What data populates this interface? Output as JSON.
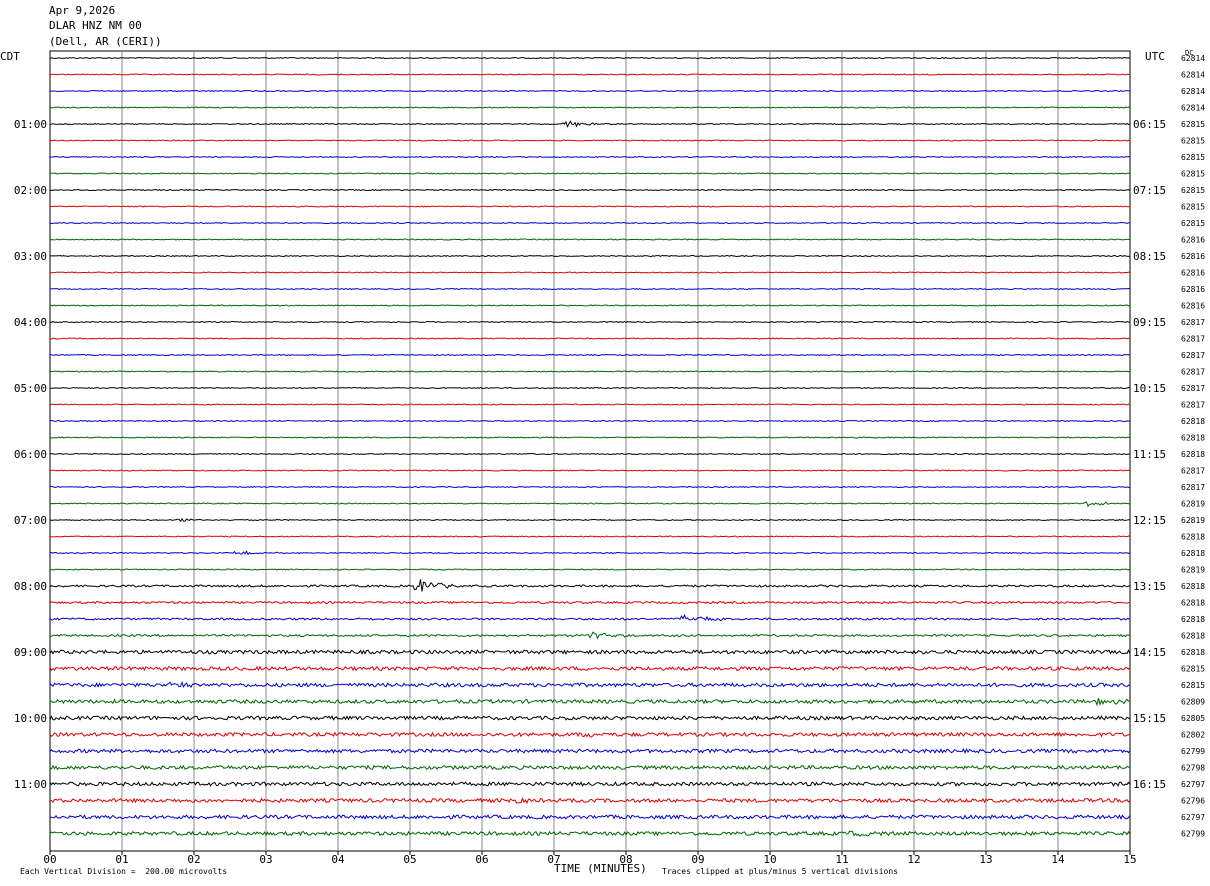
{
  "header": {
    "date": "Apr 9,2026",
    "station": "DLAR HNZ NM 00",
    "location": "(Dell, AR (CERI))"
  },
  "left_timezone": "CDT",
  "right_timezone": "UTC",
  "dc_header": "DC",
  "footer": {
    "left": "Each Vertical Division =  200.00 microvolts",
    "right": "Traces clipped at plus/minus 5 vertical divisions"
  },
  "colors": {
    "trace_cycle": [
      "#000000",
      "#dd0000",
      "#0000cc",
      "#006600"
    ],
    "grid": "#888888",
    "frame": "#000000"
  },
  "chart_data": {
    "type": "line",
    "title": "Apr 9,2026 DLAR HNZ NM 00 (Dell, AR (CERI))",
    "xlabel": "TIME (MINUTES)",
    "xlim": [
      0,
      15
    ],
    "x_ticks": [
      "00",
      "01",
      "02",
      "03",
      "04",
      "05",
      "06",
      "07",
      "08",
      "09",
      "10",
      "11",
      "12",
      "13",
      "14",
      "15"
    ],
    "left_hour_labels": [
      "01:00",
      "02:00",
      "03:00",
      "04:00",
      "05:00",
      "06:00",
      "07:00",
      "08:00",
      "09:00",
      "10:00",
      "11:00"
    ],
    "right_hour_labels": [
      "06:15",
      "07:15",
      "08:15",
      "09:15",
      "10:15",
      "11:15",
      "12:15",
      "13:15",
      "14:15",
      "15:15",
      "16:15"
    ],
    "traces_per_hour": 4,
    "trace_count": 48,
    "dc_offsets": [
      "62814",
      "62814",
      "62814",
      "62814",
      "62815",
      "62815",
      "62815",
      "62815",
      "62815",
      "62815",
      "62815",
      "62816",
      "62816",
      "62816",
      "62816",
      "62816",
      "62817",
      "62817",
      "62817",
      "62817",
      "62817",
      "62817",
      "62818",
      "62818",
      "62818",
      "62817",
      "62817",
      "62819",
      "62819",
      "62818",
      "62818",
      "62819",
      "62818",
      "62818",
      "62818",
      "62818",
      "62818",
      "62815",
      "62815",
      "62809",
      "62805",
      "62802",
      "62799",
      "62798",
      "62797",
      "62796",
      "62797",
      "62799"
    ],
    "noise_level": [
      1,
      1,
      1,
      1,
      1,
      1,
      1,
      1,
      1,
      1,
      1,
      1,
      1,
      1,
      1,
      1,
      1,
      1,
      1,
      1,
      1,
      1,
      1,
      1,
      1,
      1,
      1,
      1,
      1,
      1,
      1,
      1,
      2,
      2,
      2,
      2,
      3,
      3,
      3,
      3,
      3,
      3,
      3,
      3,
      3,
      3,
      3,
      3
    ],
    "events": [
      {
        "trace": 4,
        "minute": 7.15,
        "amp": 3
      },
      {
        "trace": 28,
        "minute": 1.8,
        "amp": 1.5
      },
      {
        "trace": 30,
        "minute": 2.6,
        "amp": 2
      },
      {
        "trace": 27,
        "minute": 14.4,
        "amp": 2
      },
      {
        "trace": 32,
        "minute": 5.1,
        "amp": 6
      },
      {
        "trace": 34,
        "minute": 8.8,
        "amp": 4
      },
      {
        "trace": 35,
        "minute": 7.5,
        "amp": 3
      },
      {
        "trace": 38,
        "minute": 1.7,
        "amp": 2
      },
      {
        "trace": 39,
        "minute": 14.5,
        "amp": 2
      },
      {
        "trace": 41,
        "minute": 7.4,
        "amp": 2
      },
      {
        "trace": 45,
        "minute": 6.4,
        "amp": 2
      },
      {
        "trace": 47,
        "minute": 11.1,
        "amp": 2
      }
    ]
  }
}
